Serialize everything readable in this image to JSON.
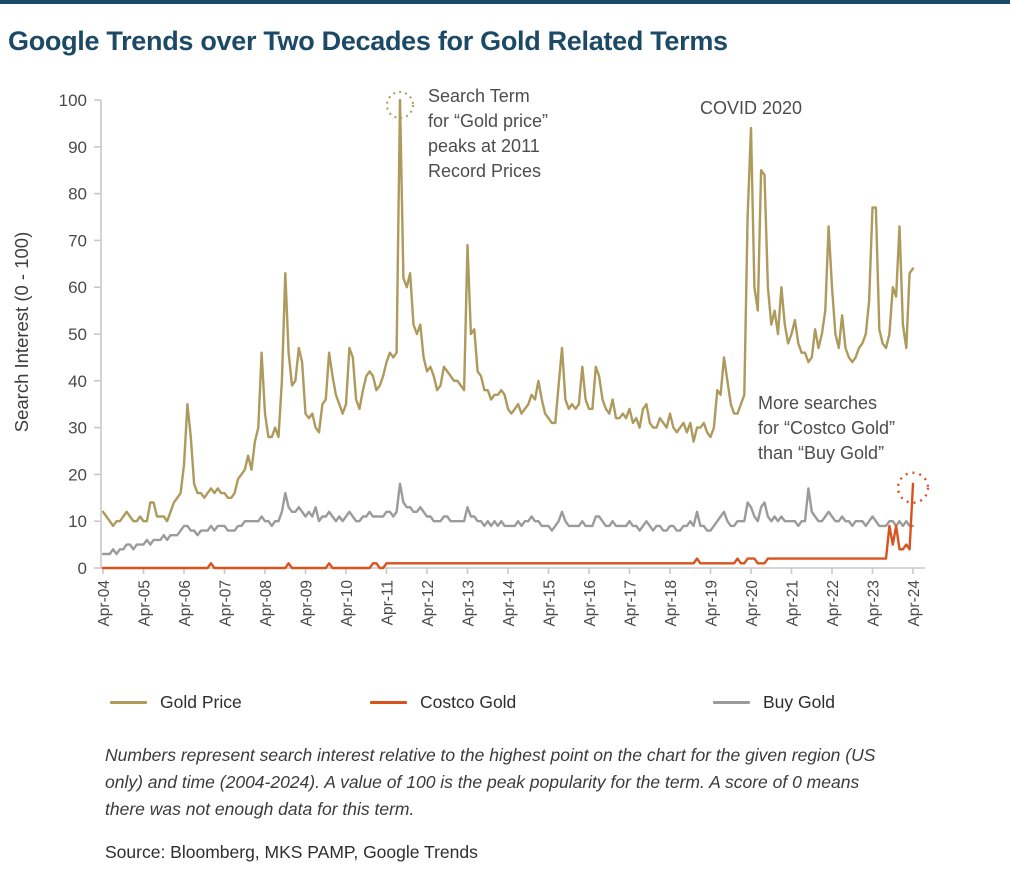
{
  "page": {
    "title": "Google Trends over Two Decades for Gold Related Terms",
    "accent_color": "#1C4A66"
  },
  "chart_data": {
    "type": "line",
    "title": "Google Trends over Two Decades for Gold Related Terms",
    "xlabel": "",
    "ylabel": "Search Interest (0 - 100)",
    "ylim": [
      0,
      100
    ],
    "yticks": [
      0,
      10,
      20,
      30,
      40,
      50,
      60,
      70,
      80,
      90,
      100
    ],
    "xticks": [
      "Apr-04",
      "Apr-05",
      "Apr-06",
      "Apr-07",
      "Apr-08",
      "Apr-09",
      "Apr-10",
      "Apr-11",
      "Apr-12",
      "Apr-13",
      "Apr-14",
      "Apr-15",
      "Apr-16",
      "Apr-17",
      "Apr-18",
      "Apr-19",
      "Apr-20",
      "Apr-21",
      "Apr-22",
      "Apr-23",
      "Apr-24"
    ],
    "x_start": "Apr-2004",
    "x_end": "Apr-2024",
    "frequency": "monthly",
    "grid": false,
    "legend_position": "bottom",
    "axis_color": "#c9c9c9",
    "tick_text_color": "#4a4a4a",
    "series": [
      {
        "name": "Gold Price",
        "color": "#AE9A5C",
        "values": [
          12,
          11,
          10,
          9,
          10,
          10,
          11,
          12,
          11,
          10,
          10,
          11,
          10,
          10,
          14,
          14,
          11,
          11,
          11,
          10,
          12,
          14,
          15,
          16,
          22,
          35,
          28,
          18,
          16,
          16,
          15,
          16,
          17,
          16,
          17,
          16,
          16,
          15,
          15,
          16,
          19,
          20,
          21,
          24,
          21,
          27,
          30,
          46,
          33,
          28,
          28,
          30,
          28,
          40,
          63,
          46,
          39,
          40,
          47,
          44,
          33,
          32,
          33,
          30,
          29,
          35,
          36,
          46,
          41,
          37,
          35,
          33,
          35,
          47,
          45,
          36,
          34,
          38,
          41,
          42,
          41,
          38,
          39,
          41,
          44,
          46,
          45,
          46,
          100,
          62,
          60,
          63,
          52,
          50,
          52,
          45,
          42,
          43,
          41,
          38,
          39,
          43,
          42,
          41,
          40,
          40,
          39,
          38,
          69,
          50,
          51,
          42,
          41,
          38,
          38,
          36,
          37,
          37,
          38,
          37,
          34,
          33,
          34,
          35,
          33,
          34,
          35,
          37,
          36,
          40,
          36,
          33,
          32,
          31,
          31,
          39,
          47,
          36,
          34,
          35,
          34,
          35,
          43,
          36,
          34,
          34,
          43,
          41,
          36,
          34,
          33,
          36,
          32,
          32,
          33,
          32,
          34,
          31,
          32,
          30,
          34,
          35,
          31,
          30,
          30,
          32,
          31,
          30,
          33,
          30,
          29,
          30,
          31,
          29,
          31,
          27,
          30,
          30,
          31,
          29,
          28,
          30,
          38,
          37,
          45,
          40,
          35,
          33,
          33,
          35,
          37,
          75,
          94,
          60,
          55,
          85,
          84,
          60,
          52,
          55,
          50,
          60,
          52,
          48,
          50,
          53,
          48,
          46,
          46,
          44,
          45,
          51,
          47,
          50,
          55,
          73,
          60,
          50,
          47,
          54,
          47,
          45,
          44,
          45,
          47,
          48,
          50,
          57,
          77,
          77,
          51,
          48,
          47,
          50,
          60,
          58,
          73,
          52,
          47,
          63,
          64
        ]
      },
      {
        "name": "Costco Gold",
        "color": "#D9531E",
        "values": [
          0,
          0,
          0,
          0,
          0,
          0,
          0,
          0,
          0,
          0,
          0,
          0,
          0,
          0,
          0,
          0,
          0,
          0,
          0,
          0,
          0,
          0,
          0,
          0,
          0,
          0,
          0,
          0,
          0,
          0,
          0,
          0,
          1,
          0,
          0,
          0,
          0,
          0,
          0,
          0,
          0,
          0,
          0,
          0,
          0,
          0,
          0,
          0,
          0,
          0,
          0,
          0,
          0,
          0,
          0,
          1,
          0,
          0,
          0,
          0,
          0,
          0,
          0,
          0,
          0,
          0,
          0,
          1,
          0,
          0,
          0,
          0,
          0,
          0,
          0,
          0,
          0,
          0,
          0,
          0,
          1,
          1,
          0,
          0,
          1,
          1,
          1,
          1,
          1,
          1,
          1,
          1,
          1,
          1,
          1,
          1,
          1,
          1,
          1,
          1,
          1,
          1,
          1,
          1,
          1,
          1,
          1,
          1,
          1,
          1,
          1,
          1,
          1,
          1,
          1,
          1,
          1,
          1,
          1,
          1,
          1,
          1,
          1,
          1,
          1,
          1,
          1,
          1,
          1,
          1,
          1,
          1,
          1,
          1,
          1,
          1,
          1,
          1,
          1,
          1,
          1,
          1,
          1,
          1,
          1,
          1,
          1,
          1,
          1,
          1,
          1,
          1,
          1,
          1,
          1,
          1,
          1,
          1,
          1,
          1,
          1,
          1,
          1,
          1,
          1,
          1,
          1,
          1,
          1,
          1,
          1,
          1,
          1,
          1,
          1,
          1,
          2,
          1,
          1,
          1,
          1,
          1,
          1,
          1,
          1,
          1,
          1,
          1,
          2,
          1,
          1,
          2,
          2,
          2,
          1,
          1,
          1,
          2,
          2,
          2,
          2,
          2,
          2,
          2,
          2,
          2,
          2,
          2,
          2,
          2,
          2,
          2,
          2,
          2,
          2,
          2,
          2,
          2,
          2,
          2,
          2,
          2,
          2,
          2,
          2,
          2,
          2,
          2,
          2,
          2,
          2,
          2,
          2,
          9,
          5,
          9,
          4,
          4,
          5,
          4,
          18
        ]
      },
      {
        "name": "Buy Gold",
        "color": "#9B9B9B",
        "values": [
          3,
          3,
          3,
          4,
          3,
          4,
          4,
          5,
          5,
          4,
          5,
          5,
          5,
          6,
          5,
          6,
          6,
          6,
          7,
          6,
          7,
          7,
          7,
          8,
          9,
          9,
          8,
          8,
          7,
          8,
          8,
          8,
          9,
          8,
          9,
          9,
          9,
          8,
          8,
          8,
          9,
          9,
          10,
          10,
          10,
          10,
          10,
          11,
          10,
          10,
          9,
          10,
          10,
          12,
          16,
          13,
          12,
          12,
          13,
          12,
          11,
          12,
          11,
          13,
          10,
          11,
          11,
          12,
          11,
          10,
          11,
          10,
          11,
          12,
          11,
          10,
          10,
          11,
          11,
          12,
          11,
          11,
          11,
          11,
          12,
          12,
          11,
          12,
          18,
          14,
          13,
          13,
          12,
          12,
          13,
          12,
          11,
          11,
          10,
          10,
          10,
          11,
          11,
          10,
          10,
          10,
          10,
          10,
          13,
          11,
          11,
          10,
          10,
          9,
          10,
          9,
          10,
          9,
          10,
          9,
          9,
          9,
          9,
          10,
          9,
          10,
          10,
          11,
          10,
          10,
          9,
          9,
          9,
          8,
          9,
          10,
          12,
          10,
          9,
          9,
          9,
          9,
          10,
          9,
          9,
          9,
          11,
          11,
          10,
          9,
          9,
          10,
          9,
          9,
          9,
          9,
          10,
          9,
          9,
          8,
          9,
          10,
          9,
          8,
          9,
          9,
          8,
          8,
          9,
          9,
          8,
          8,
          9,
          9,
          10,
          9,
          12,
          9,
          9,
          8,
          8,
          9,
          10,
          11,
          12,
          10,
          9,
          9,
          10,
          10,
          10,
          14,
          13,
          11,
          10,
          13,
          14,
          11,
          10,
          11,
          10,
          11,
          10,
          10,
          10,
          10,
          9,
          10,
          10,
          17,
          12,
          11,
          10,
          10,
          11,
          12,
          11,
          10,
          10,
          11,
          10,
          10,
          9,
          10,
          10,
          10,
          9,
          10,
          11,
          10,
          9,
          9,
          9,
          10,
          10,
          9,
          10,
          9,
          10,
          9,
          9
        ]
      }
    ],
    "annotations": [
      {
        "id": "gold-peak",
        "lines": [
          "Search Term",
          "for “Gold price”",
          "peaks at 2011",
          "Record Prices"
        ],
        "marker": "dotted-circle",
        "marker_color": "#AE9A5C",
        "points_at": {
          "x": "Aug-2011",
          "y": 100
        }
      },
      {
        "id": "covid",
        "lines": [
          "COVID 2020"
        ],
        "points_at": {
          "x": "Apr-2020",
          "y": 94
        }
      },
      {
        "id": "costco-spike",
        "lines": [
          "More searches",
          "for “Costco Gold”",
          "than “Buy Gold”"
        ],
        "marker": "dotted-circle",
        "marker_color": "#D9531E",
        "points_at": {
          "x": "Apr-2024",
          "y": 18
        }
      }
    ]
  },
  "footnote": {
    "text": "Numbers represent search interest relative to the highest point on the chart for the given region (US only) and time (2004-2024). A value of 100 is the peak popularity for the term. A score of 0 means there was not enough data for this term."
  },
  "source": {
    "text": "Source: Bloomberg, MKS PAMP, Google Trends"
  }
}
